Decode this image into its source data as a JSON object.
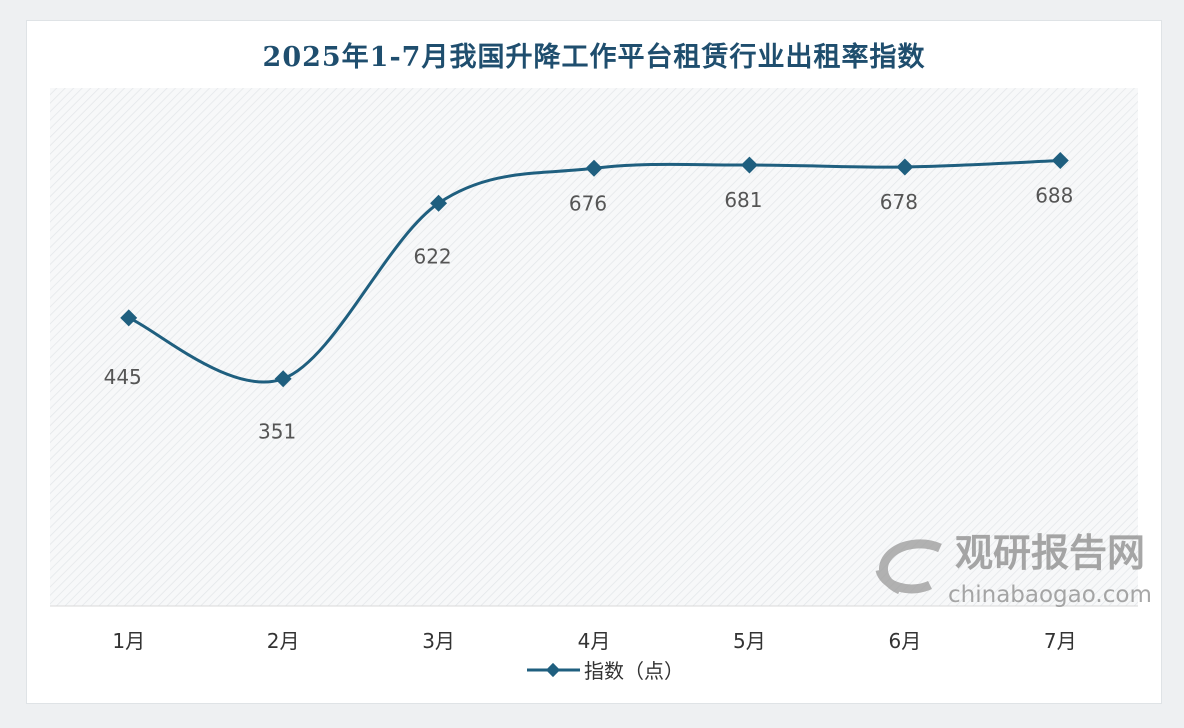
{
  "chart_data": {
    "type": "line",
    "title": "2025年1-7月我国升降工作平台租赁行业出租率指数",
    "categories": [
      "1月",
      "2月",
      "3月",
      "4月",
      "5月",
      "6月",
      "7月"
    ],
    "series": [
      {
        "name": "指数（点）",
        "values": [
          445,
          351,
          622,
          676,
          681,
          678,
          688
        ]
      }
    ],
    "data_labels": [
      "445",
      "351",
      "622",
      "676",
      "681",
      "678",
      "688"
    ],
    "ylim": [
      0,
      800
    ],
    "xlabel": "",
    "ylabel": "",
    "grid": false,
    "smooth": true,
    "legend": "bottom",
    "colors": {
      "line": "#1f5f7f",
      "title": "#1f4e6e",
      "label": "#555555"
    }
  },
  "watermark": {
    "name": "观研报告网",
    "url": "chinabaogao.com"
  }
}
